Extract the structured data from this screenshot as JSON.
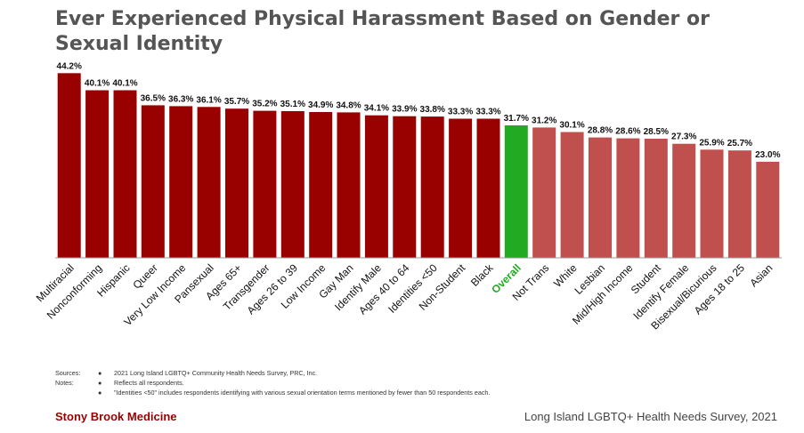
{
  "title": "Ever Experienced Physical Harassment Based on Gender or Sexual Identity",
  "colors": {
    "above": "#990000",
    "overall": "#22aa22",
    "below": "#c0504d",
    "overall_label": "#22aa22",
    "axis": "#999999"
  },
  "chart_data": {
    "type": "bar",
    "title": "Ever Experienced Physical Harassment Based on Gender or Sexual Identity",
    "xlabel": "",
    "ylabel": "",
    "ylim": [
      0,
      50
    ],
    "grid": false,
    "categories": [
      "Multiracial",
      "Nonconforming",
      "Hispanic",
      "Queer",
      "Very Low Income",
      "Pansexual",
      "Ages 65+",
      "Transgender",
      "Ages 26 to 39",
      "Low Income",
      "Gay Man",
      "Identify Male",
      "Ages 40 to 64",
      "Identities <50",
      "Non-Student",
      "Black",
      "Overall",
      "Not Trans",
      "White",
      "Lesbian",
      "Mid/High Income",
      "Student",
      "Identify Female",
      "Bisexual/Bicurious",
      "Ages 18 to 25",
      "Asian"
    ],
    "values": [
      44.2,
      40.1,
      40.1,
      36.5,
      36.3,
      36.1,
      35.7,
      35.2,
      35.1,
      34.9,
      34.8,
      34.1,
      33.9,
      33.8,
      33.3,
      33.3,
      31.7,
      31.2,
      30.1,
      28.8,
      28.6,
      28.5,
      27.3,
      25.9,
      25.7,
      23.0
    ],
    "value_labels": [
      "44.2%",
      "40.1%",
      "40.1%",
      "36.5%",
      "36.3%",
      "36.1%",
      "35.7%",
      "35.2%",
      "35.1%",
      "34.9%",
      "34.8%",
      "34.1%",
      "33.9%",
      "33.8%",
      "33.3%",
      "33.3%",
      "31.7%",
      "31.2%",
      "30.1%",
      "28.8%",
      "28.6%",
      "28.5%",
      "27.3%",
      "25.9%",
      "25.7%",
      "23.0%"
    ],
    "groups": [
      "above",
      "above",
      "above",
      "above",
      "above",
      "above",
      "above",
      "above",
      "above",
      "above",
      "above",
      "above",
      "above",
      "above",
      "above",
      "above",
      "overall",
      "below",
      "below",
      "below",
      "below",
      "below",
      "below",
      "below",
      "below",
      "below"
    ]
  },
  "footnotes": {
    "sources_label": "Sources:",
    "notes_label": "Notes:",
    "bullet": "●",
    "source_text": "2021 Long Island LGBTQ+ Community Health Needs Survey, PRC, Inc.",
    "note_1": "Reflects all respondents.",
    "note_2": "\"Identities <50\" includes respondents identifying with various sexual orientation terms mentioned by fewer than 50 respondents each."
  },
  "footer": {
    "brand": "Stony Brook Medicine",
    "survey_name": "Long Island LGBTQ+ Health Needs Survey, 2021"
  }
}
